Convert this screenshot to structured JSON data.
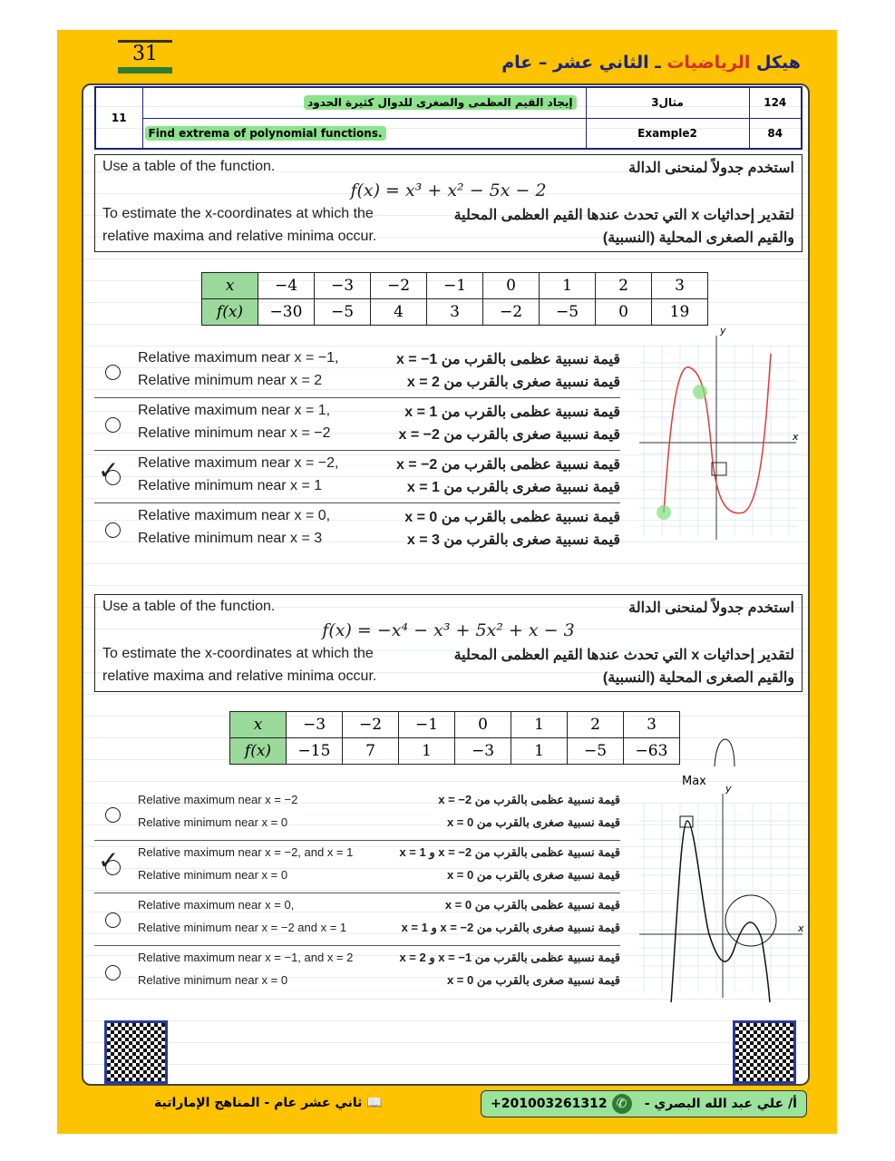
{
  "header": {
    "page_number": "31",
    "title_prefix": "هيكل",
    "title_subject": "الرياضيات",
    "title_rest": "ـ الثاني عشر – عام"
  },
  "info_table": {
    "lesson": "11",
    "ar_title": "إيجاد القيم العظمى والصغرى للدوال كثيرة الحدود",
    "en_title": "Find extrema of polynomial functions.",
    "ar_example": "مثال3",
    "en_example": "Example2",
    "ar_page": "124",
    "en_page": "84"
  },
  "q1": {
    "en_line1": "Use a table of the function.",
    "ar_line1": "استخدم جدولاً لمنحنى الدالة",
    "function": "f(x) = x³ + x² − 5x − 2",
    "en_line2": "To estimate the x-coordinates at which the",
    "ar_line2": "لتقدير إحداثيات x التي تحدث عندها القيم العظمى المحلية",
    "en_line3": "relative maxima and relative minima occur.",
    "ar_line3": "والقيم الصغرى المحلية (النسبية)",
    "table": {
      "x_label": "x",
      "f_label": "f(x)",
      "x": [
        "−4",
        "−3",
        "−2",
        "−1",
        "0",
        "1",
        "2",
        "3"
      ],
      "f": [
        "−30",
        "−5",
        "4",
        "3",
        "−2",
        "−5",
        "0",
        "19"
      ]
    },
    "options": [
      {
        "en1": "Relative maximum near x = −1,",
        "en2": "Relative minimum near x = 2",
        "ar1": "قيمة نسبية عظمى بالقرب من x = −1",
        "ar2": "قيمة نسبية صغرى بالقرب من x = 2",
        "marked": false
      },
      {
        "en1": "Relative maximum near x = 1,",
        "en2": "Relative minimum near x = −2",
        "ar1": "قيمة نسبية عظمى بالقرب من x = 1",
        "ar2": "قيمة نسبية صغرى بالقرب من x = −2",
        "marked": false
      },
      {
        "en1": "Relative maximum near x = −2,",
        "en2": "Relative minimum near x = 1",
        "ar1": "قيمة نسبية عظمى بالقرب من x = −2",
        "ar2": "قيمة نسبية صغرى بالقرب من x = 1",
        "marked": true
      },
      {
        "en1": "Relative maximum near x = 0,",
        "en2": "Relative minimum near x = 3",
        "ar1": "قيمة نسبية عظمى بالقرب من x = 0",
        "ar2": "قيمة نسبية صغرى بالقرب من x = 3",
        "marked": false
      }
    ]
  },
  "q2": {
    "en_line1": "Use a table of the function.",
    "ar_line1": "استخدم جدولاً لمنحنى الدالة",
    "function": "f(x) = −x⁴ − x³ + 5x² + x − 3",
    "en_line2": "To estimate the x-coordinates at which the",
    "ar_line2": "لتقدير إحداثيات x التي تحدث عندها القيم العظمى المحلية",
    "en_line3": "relative maxima and relative minima occur.",
    "ar_line3": "والقيم الصغرى المحلية (النسبية)",
    "table": {
      "x_label": "x",
      "f_label": "f(x)",
      "x": [
        "−3",
        "−2",
        "−1",
        "0",
        "1",
        "2",
        "3"
      ],
      "f": [
        "−15",
        "7",
        "1",
        "−3",
        "1",
        "−5",
        "−63"
      ]
    },
    "options": [
      {
        "en1": "Relative maximum near x = −2",
        "en2": "Relative minimum near x = 0",
        "ar1": "قيمة نسبية عظمى بالقرب من x = −2",
        "ar2": "قيمة نسبية صغرى بالقرب من x = 0",
        "marked": false
      },
      {
        "en1": "Relative maximum near x = −2, and x = 1",
        "en2": "Relative minimum near x = 0",
        "ar1": "قيمة نسبية عظمى بالقرب من x = −2 و x = 1",
        "ar2": "قيمة نسبية صغرى بالقرب من x = 0",
        "marked": true
      },
      {
        "en1": "Relative maximum near x = 0,",
        "en2": "Relative minimum near x = −2 and x = 1",
        "ar1": "قيمة نسبية عظمى بالقرب من x = 0",
        "ar2": "قيمة نسبية صغرى بالقرب من x = −2 و x = 1",
        "marked": false
      },
      {
        "en1": "Relative maximum near x = −1, and x = 2",
        "en2": "Relative minimum near x = 0",
        "ar1": "قيمة نسبية عظمى بالقرب من x = −1 و x = 2",
        "ar2": "قيمة نسبية صغرى بالقرب من x = 0",
        "marked": false
      }
    ],
    "annotation_max": "Max"
  },
  "graph": {
    "x_label": "x",
    "y_label": "y"
  },
  "footer": {
    "left": "ثاني عشر عام - المناهج الإماراتية",
    "teacher": "أ/ علي عبد الله البصري  -",
    "phone": "+201003261312"
  },
  "colors": {
    "frame": "#fdc200",
    "highlight": "#8be38b",
    "navy": "#1a237e"
  }
}
